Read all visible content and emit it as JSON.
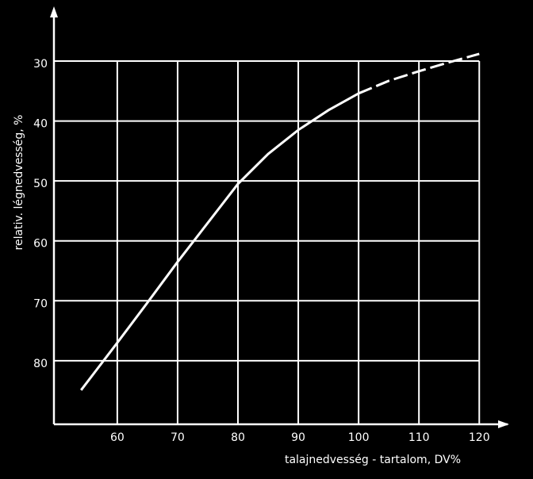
{
  "chart_data": {
    "type": "line",
    "xlabel": "talajnedvesség - tartalom,   DV%",
    "ylabel": "relativ. légnedvesség, %",
    "xlim": [
      49.5,
      124.7
    ],
    "ylim": [
      90.6,
      21.4
    ],
    "xticks": [
      60,
      70,
      80,
      90,
      100,
      110,
      120
    ],
    "yticks": [
      30,
      40,
      50,
      60,
      70,
      80
    ],
    "grid": true,
    "series": [
      {
        "color": "#ffffff",
        "dashed": false,
        "x": [
          54,
          60,
          65,
          70,
          75,
          80,
          85,
          90,
          95,
          100
        ],
        "values": [
          84.9,
          77,
          70.3,
          63.5,
          57,
          50.5,
          45.5,
          41.5,
          38.2,
          35.4
        ]
      },
      {
        "color": "#ffffff",
        "dashed": true,
        "x": [
          100,
          105,
          110,
          115,
          120
        ],
        "values": [
          35.4,
          33.3,
          31.7,
          30.2,
          28.8
        ]
      }
    ]
  }
}
